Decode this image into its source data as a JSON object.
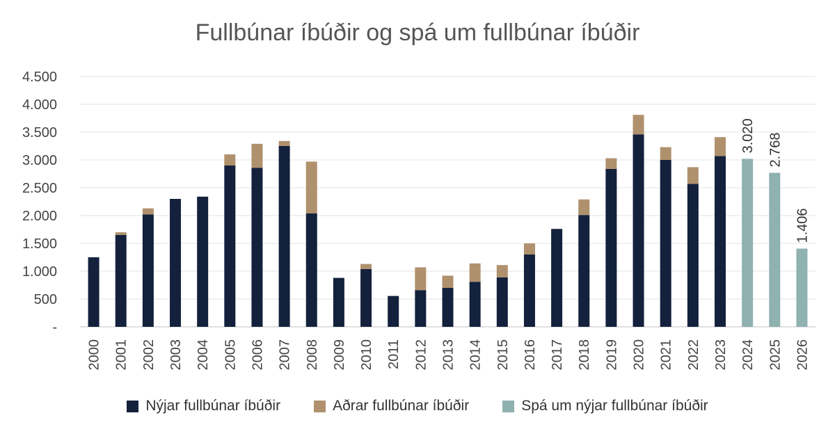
{
  "chart_data": {
    "type": "bar",
    "stacked": true,
    "title": "Fullbúnar íbúðir og spá um fullbúnar íbúðir",
    "xlabel": "",
    "ylabel": "",
    "ylim": [
      0,
      4500
    ],
    "y_ticks": [
      {
        "value": 0,
        "label": "-"
      },
      {
        "value": 500,
        "label": "500"
      },
      {
        "value": 1000,
        "label": "1.000"
      },
      {
        "value": 1500,
        "label": "1.500"
      },
      {
        "value": 2000,
        "label": "2.000"
      },
      {
        "value": 2500,
        "label": "2.500"
      },
      {
        "value": 3000,
        "label": "3.000"
      },
      {
        "value": 3500,
        "label": "3.500"
      },
      {
        "value": 4000,
        "label": "4.000"
      },
      {
        "value": 4500,
        "label": "4.500"
      }
    ],
    "grid": true,
    "legend_position": "bottom",
    "categories": [
      "2000",
      "2001",
      "2002",
      "2003",
      "2004",
      "2005",
      "2006",
      "2007",
      "2008",
      "2009",
      "2010",
      "2011",
      "2012",
      "2013",
      "2014",
      "2015",
      "2016",
      "2017",
      "2018",
      "2019",
      "2020",
      "2021",
      "2022",
      "2023",
      "2024",
      "2025",
      "2026"
    ],
    "series": [
      {
        "name": "Nýjar fullbúnar íbúðir",
        "color": "#14213d",
        "values": [
          1250,
          1650,
          2020,
          2300,
          2340,
          2900,
          2860,
          3250,
          2040,
          880,
          1040,
          555,
          660,
          700,
          810,
          890,
          1300,
          1760,
          2010,
          2840,
          3460,
          3000,
          2570,
          3070,
          0,
          0,
          0
        ]
      },
      {
        "name": "Aðrar fullbúnar íbúðir",
        "color": "#b0916d",
        "values": [
          0,
          50,
          110,
          0,
          0,
          200,
          430,
          90,
          930,
          0,
          90,
          0,
          410,
          220,
          330,
          220,
          200,
          0,
          280,
          190,
          350,
          230,
          300,
          340,
          0,
          0,
          0
        ]
      },
      {
        "name": "Spá um nýjar fullbúnar íbúðir",
        "color": "#8fb1b0",
        "values": [
          0,
          0,
          0,
          0,
          0,
          0,
          0,
          0,
          0,
          0,
          0,
          0,
          0,
          0,
          0,
          0,
          0,
          0,
          0,
          0,
          0,
          0,
          0,
          0,
          3020,
          2768,
          1406
        ]
      }
    ],
    "data_labels": [
      {
        "category": "2024",
        "text": "3.020"
      },
      {
        "category": "2025",
        "text": "2.768"
      },
      {
        "category": "2026",
        "text": "1.406"
      }
    ]
  }
}
